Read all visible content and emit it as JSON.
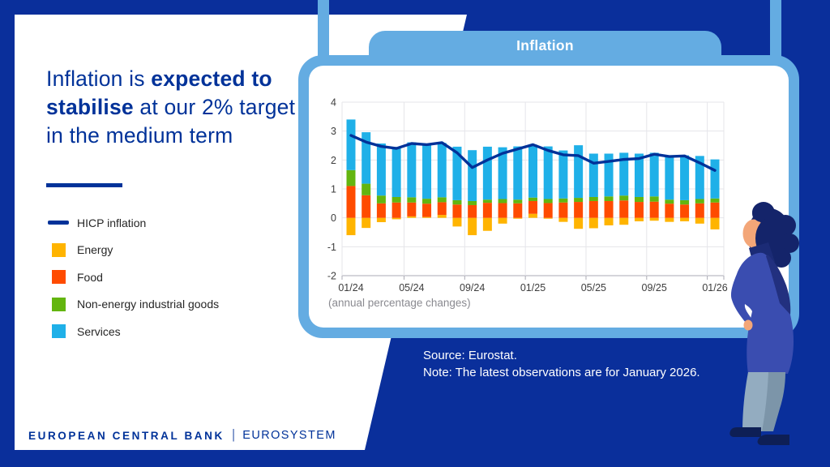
{
  "colors": {
    "background": "#0A2F9B",
    "accent_light_blue": "#64ACE2",
    "brand_blue": "#003299",
    "card_white": "#FFFFFF"
  },
  "panel": {
    "title_pre": "Inflation is ",
    "title_bold": "expected to stabilise",
    "title_post": " at our 2% target in the medium term"
  },
  "legend": [
    {
      "label": "HICP inflation",
      "color": "#003299",
      "type": "line"
    },
    {
      "label": "Energy",
      "color": "#FFB400",
      "type": "box"
    },
    {
      "label": "Food",
      "color": "#FF4B00",
      "type": "box"
    },
    {
      "label": "Non-energy industrial goods",
      "color": "#63B50F",
      "type": "box"
    },
    {
      "label": "Services",
      "color": "#1FB0E8",
      "type": "box"
    }
  ],
  "card": {
    "tab_label": "Inflation",
    "footnote": "(annual percentage changes)"
  },
  "source_note": {
    "line1": "Source: Eurostat.",
    "line2": "Note: The latest observations are for January 2026."
  },
  "footer": {
    "org": "EUROPEAN CENTRAL BANK",
    "separator": "|",
    "system": "EUROSYSTEM"
  },
  "chart_data": {
    "type": "bar",
    "subtype": "stacked-contributions-with-line",
    "title": "Inflation",
    "ylabel": "(annual percentage changes)",
    "grid": true,
    "ylim": [
      -2,
      4
    ],
    "yticks": [
      4,
      3,
      2,
      1,
      0,
      -1,
      -2
    ],
    "x": [
      "01/24",
      "02/24",
      "03/24",
      "04/24",
      "05/24",
      "06/24",
      "07/24",
      "08/24",
      "09/24",
      "10/24",
      "11/24",
      "12/24",
      "01/25",
      "02/25",
      "03/25",
      "04/25",
      "05/25",
      "06/25",
      "07/25",
      "08/25",
      "09/25",
      "10/25",
      "11/25",
      "12/25",
      "01/26"
    ],
    "x_tick_labels": [
      "01/24",
      "05/24",
      "09/24",
      "01/25",
      "05/25",
      "09/25",
      "01/26"
    ],
    "series": [
      {
        "name": "Energy",
        "color": "#FFB400",
        "values": [
          -0.6,
          -0.35,
          -0.15,
          -0.05,
          0.05,
          0.03,
          0.1,
          -0.3,
          -0.6,
          -0.45,
          -0.2,
          -0.03,
          0.14,
          -0.03,
          -0.14,
          -0.38,
          -0.36,
          -0.26,
          -0.24,
          -0.12,
          -0.1,
          -0.14,
          -0.12,
          -0.2,
          -0.4
        ]
      },
      {
        "name": "Food",
        "color": "#FF4B00",
        "values": [
          1.1,
          0.78,
          0.5,
          0.53,
          0.48,
          0.46,
          0.44,
          0.46,
          0.44,
          0.52,
          0.51,
          0.5,
          0.44,
          0.51,
          0.53,
          0.55,
          0.58,
          0.58,
          0.6,
          0.55,
          0.56,
          0.49,
          0.46,
          0.5,
          0.53
        ]
      },
      {
        "name": "Non-energy industrial goods",
        "color": "#63B50F",
        "values": [
          0.55,
          0.4,
          0.27,
          0.19,
          0.18,
          0.17,
          0.17,
          0.15,
          0.14,
          0.11,
          0.14,
          0.13,
          0.12,
          0.14,
          0.14,
          0.14,
          0.14,
          0.16,
          0.17,
          0.17,
          0.18,
          0.14,
          0.15,
          0.15,
          0.14
        ]
      },
      {
        "name": "Services",
        "color": "#1FB0E8",
        "values": [
          1.75,
          1.78,
          1.8,
          1.73,
          1.9,
          1.87,
          1.88,
          1.85,
          1.76,
          1.83,
          1.79,
          1.84,
          1.83,
          1.82,
          1.66,
          1.82,
          1.5,
          1.48,
          1.48,
          1.5,
          1.51,
          1.52,
          1.55,
          1.49,
          1.35
        ]
      }
    ],
    "line_series": {
      "name": "HICP inflation",
      "color": "#003299",
      "values": [
        2.85,
        2.62,
        2.47,
        2.4,
        2.57,
        2.53,
        2.6,
        2.25,
        1.74,
        2.0,
        2.23,
        2.38,
        2.53,
        2.33,
        2.18,
        2.15,
        1.89,
        1.95,
        2.02,
        2.05,
        2.2,
        2.12,
        2.14,
        1.9,
        1.64
      ]
    }
  }
}
